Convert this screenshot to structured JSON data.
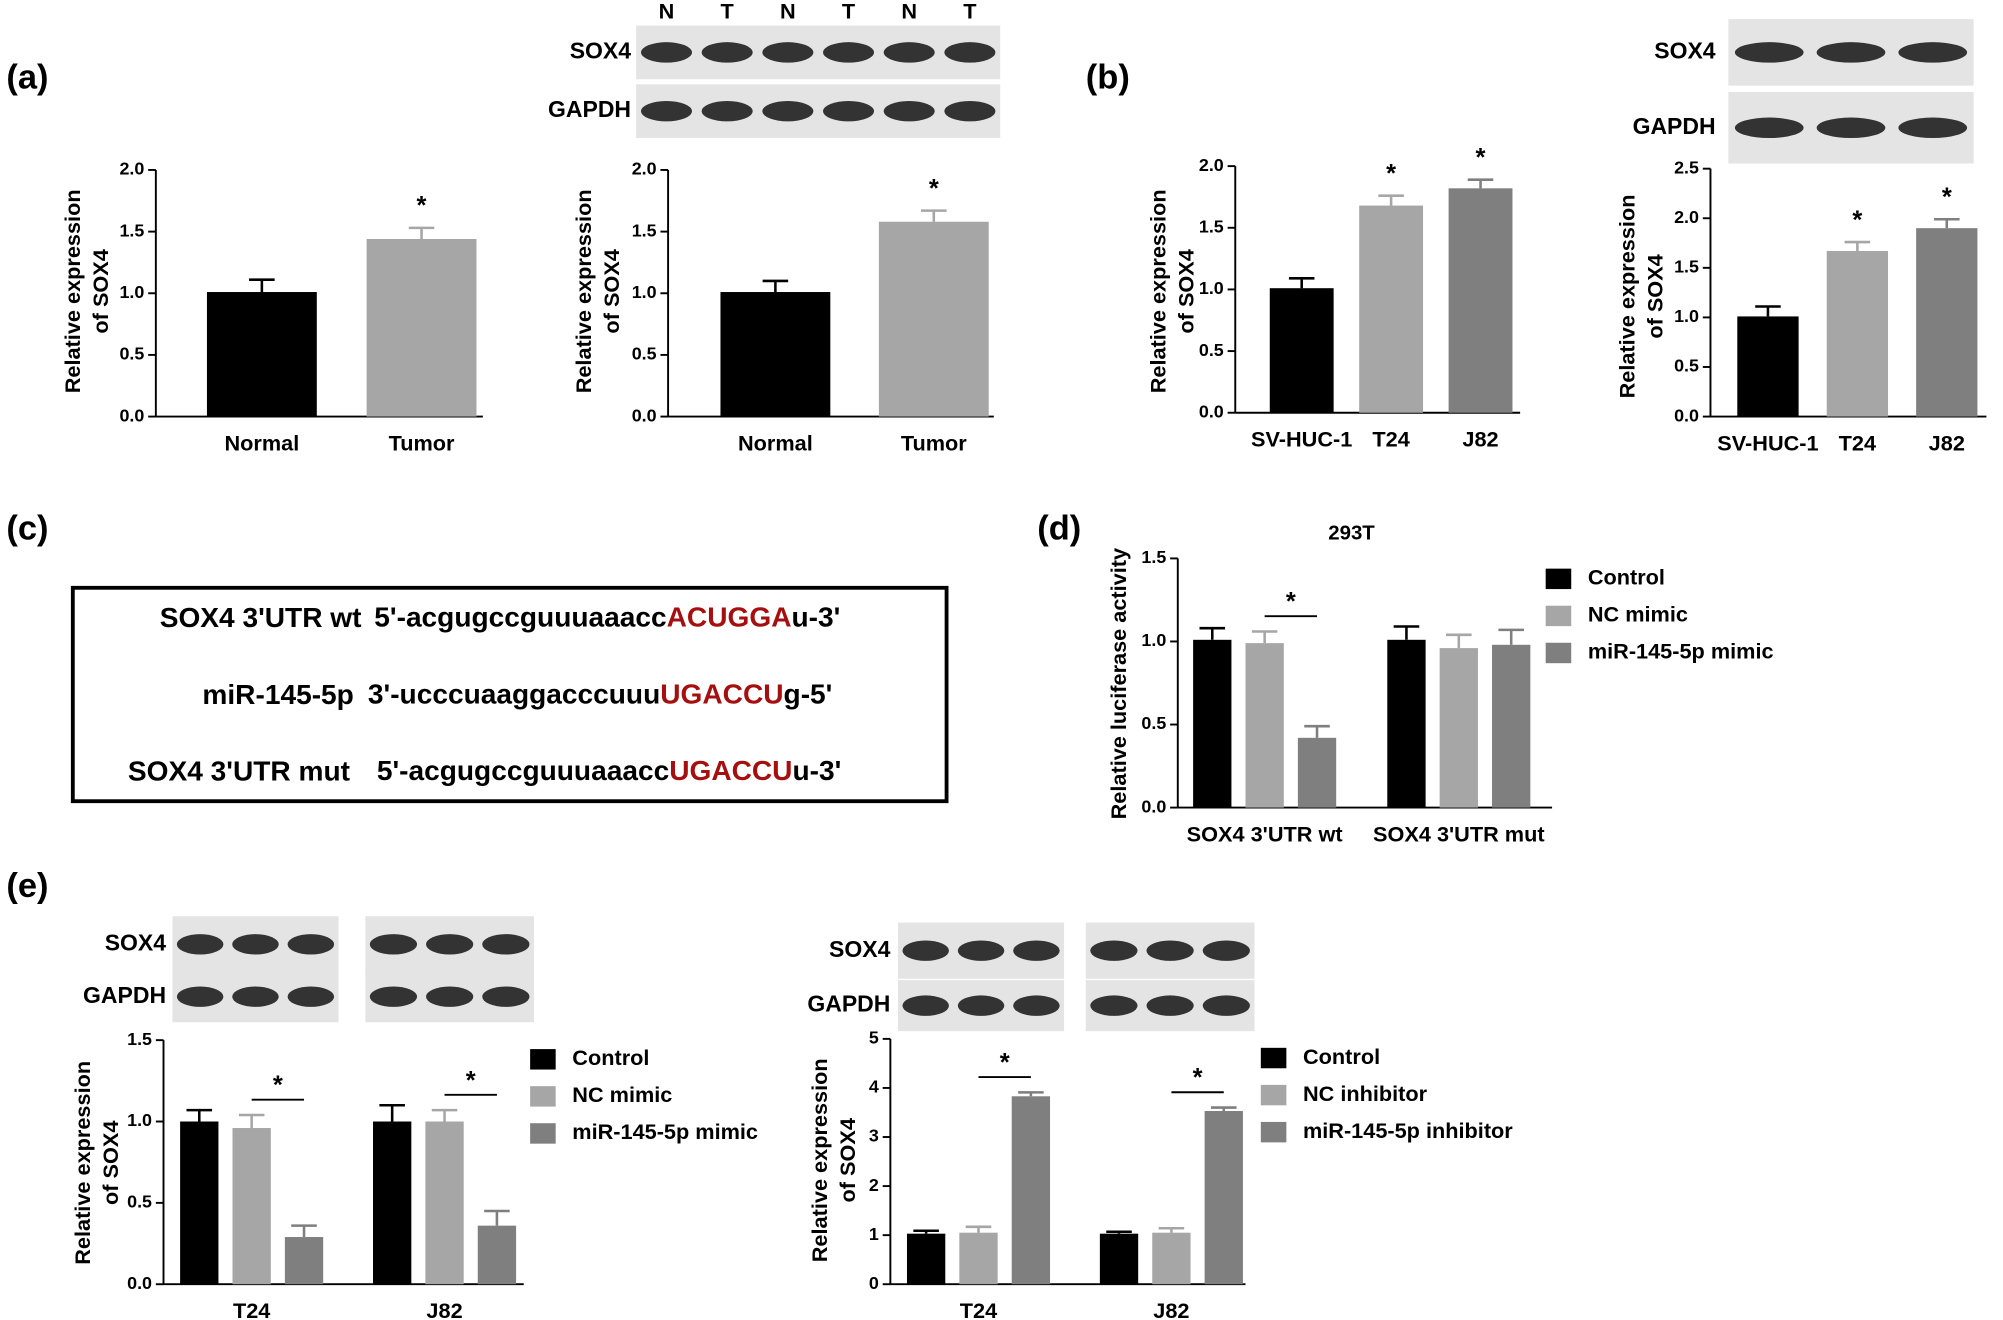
{
  "chart_data": [
    {
      "type": "bar",
      "panel": "(a)",
      "categories": [
        "Normal",
        "Tumor"
      ],
      "values": [
        1.01,
        1.44
      ],
      "errors": [
        0.1,
        0.09
      ],
      "colors": [
        "#000000",
        "#a6a6a6"
      ],
      "ylabel": [
        "Relative expression",
        "of SOX4"
      ],
      "ylim": [
        0,
        2
      ],
      "yticks": [
        {
          "value": 0,
          "label": "0.0"
        },
        0.5,
        {
          "value": 1,
          "label": "1.0"
        },
        1.5,
        {
          "value": 2,
          "label": "2.0"
        }
      ],
      "annotations": [
        {
          "text": "*",
          "category": 1
        }
      ]
    },
    {
      "type": "bar",
      "categories": [
        "Normal",
        "Tumor"
      ],
      "values": [
        1.01,
        1.58
      ],
      "errors": [
        0.09,
        0.09
      ],
      "colors": [
        "#000000",
        "#a6a6a6"
      ],
      "ylabel": [
        "Relative expression",
        "of SOX4"
      ],
      "ylim": [
        0,
        2
      ],
      "yticks": [
        {
          "value": 0,
          "label": "0.0"
        },
        0.5,
        {
          "value": 1,
          "label": "1.0"
        },
        1.5,
        {
          "value": 2,
          "label": "2.0"
        }
      ],
      "annotations": [
        {
          "text": "*",
          "category": 1
        }
      ],
      "blot": {
        "rows": [
          "SOX4",
          "GAPDH"
        ],
        "lanes": [
          "N",
          "T",
          "N",
          "T",
          "N",
          "T"
        ]
      }
    },
    {
      "type": "bar",
      "panel": "(b)",
      "categories": [
        "SV-HUC-1",
        "T24",
        "J82"
      ],
      "values": [
        1.01,
        1.68,
        1.82
      ],
      "errors": [
        0.08,
        0.08,
        0.07
      ],
      "colors": [
        "#000000",
        "#a6a6a6",
        "#7f7f7f"
      ],
      "ylabel": [
        "Relative expression",
        "of SOX4"
      ],
      "ylim": [
        0,
        2
      ],
      "yticks": [
        {
          "value": 0,
          "label": "0.0"
        },
        0.5,
        {
          "value": 1,
          "label": "1.0"
        },
        1.5,
        {
          "value": 2,
          "label": "2.0"
        }
      ],
      "annotations": [
        {
          "text": "*",
          "category": 1
        },
        {
          "text": "*",
          "category": 2
        }
      ]
    },
    {
      "type": "bar",
      "categories": [
        "SV-HUC-1",
        "T24",
        "J82"
      ],
      "values": [
        1.01,
        1.67,
        1.9
      ],
      "errors": [
        0.1,
        0.09,
        0.09
      ],
      "colors": [
        "#000000",
        "#a6a6a6",
        "#7f7f7f"
      ],
      "ylabel": [
        "Relative expression",
        "of SOX4"
      ],
      "ylim": [
        0,
        2.5
      ],
      "yticks": [
        {
          "value": 0,
          "label": "0.0"
        },
        0.5,
        {
          "value": 1,
          "label": "1.0"
        },
        1.5,
        {
          "value": 2,
          "label": "2.0"
        },
        2.5
      ],
      "annotations": [
        {
          "text": "*",
          "category": 1
        },
        {
          "text": "*",
          "category": 2
        }
      ],
      "blot": {
        "rows": [
          "SOX4",
          "GAPDH"
        ]
      }
    },
    {
      "type": "bar",
      "panel": "(d)",
      "title": "293T",
      "categories": [
        "SOX4 3'UTR wt",
        "SOX4 3'UTR mut"
      ],
      "series": [
        {
          "name": "Control",
          "color": "#000000",
          "values": [
            1.01,
            1.01
          ],
          "errors": [
            0.07,
            0.08
          ]
        },
        {
          "name": "NC mimic",
          "color": "#a6a6a6",
          "values": [
            0.99,
            0.96
          ],
          "errors": [
            0.07,
            0.08
          ]
        },
        {
          "name": "miR-145-5p mimic",
          "color": "#7f7f7f",
          "values": [
            0.42,
            0.98
          ],
          "errors": [
            0.07,
            0.09
          ]
        }
      ],
      "ylabel": [
        "Relative luciferase activity"
      ],
      "ylim": [
        0,
        1.5
      ],
      "yticks": [
        {
          "value": 0,
          "label": "0.0"
        },
        0.5,
        {
          "value": 1,
          "label": "1.0"
        },
        1.5
      ],
      "annotations": [
        {
          "text": "*",
          "category": 0,
          "series": [
            1,
            2
          ]
        }
      ]
    },
    {
      "type": "bar",
      "panel": "(e)",
      "categories": [
        "T24",
        "J82"
      ],
      "series": [
        {
          "name": "Control",
          "color": "#000000",
          "values": [
            1.0,
            1.0
          ],
          "errors": [
            0.07,
            0.1
          ]
        },
        {
          "name": "NC mimic",
          "color": "#a6a6a6",
          "values": [
            0.96,
            1.0
          ],
          "errors": [
            0.08,
            0.07
          ]
        },
        {
          "name": "miR-145-5p mimic",
          "color": "#7f7f7f",
          "values": [
            0.29,
            0.36
          ],
          "errors": [
            0.07,
            0.09
          ]
        }
      ],
      "ylabel": [
        "Relative expression",
        "of SOX4"
      ],
      "ylim": [
        0,
        1.5
      ],
      "yticks": [
        {
          "value": 0,
          "label": "0.0"
        },
        0.5,
        {
          "value": 1,
          "label": "1.0"
        },
        1.5
      ],
      "annotations": [
        {
          "text": "*",
          "category": 0,
          "series": [
            1,
            2
          ]
        },
        {
          "text": "*",
          "category": 1,
          "series": [
            1,
            2
          ]
        }
      ],
      "blot": {
        "rows": [
          "SOX4",
          "GAPDH"
        ]
      }
    },
    {
      "type": "bar",
      "categories": [
        "T24",
        "J82"
      ],
      "series": [
        {
          "name": "Control",
          "color": "#000000",
          "values": [
            1.03,
            1.03
          ],
          "errors": [
            0.06,
            0.04
          ]
        },
        {
          "name": "NC inhibitor",
          "color": "#a6a6a6",
          "values": [
            1.05,
            1.05
          ],
          "errors": [
            0.12,
            0.09
          ]
        },
        {
          "name": "miR-145-5p inhibitor",
          "color": "#7f7f7f",
          "values": [
            3.83,
            3.53
          ],
          "errors": [
            0.08,
            0.07
          ]
        }
      ],
      "ylabel": [
        "Relative expression",
        "of SOX4"
      ],
      "ylim": [
        0,
        5
      ],
      "yticks": [
        0,
        1,
        2,
        3,
        4,
        5
      ],
      "annotations": [
        {
          "text": "*",
          "category": 0,
          "series": [
            1,
            2
          ]
        },
        {
          "text": "*",
          "category": 1,
          "series": [
            1,
            2
          ]
        }
      ],
      "blot": {
        "rows": [
          "SOX4",
          "GAPDH"
        ]
      }
    }
  ],
  "sequence_box": {
    "panel": "(c)",
    "rows": [
      {
        "label": "SOX4 3'UTR wt",
        "prefix": "5'-acgugccguuuaaacc",
        "highlight": "ACUGGA",
        "suffix": "u-3'"
      },
      {
        "label": "miR-145-5p",
        "prefix": "3'-ucccuaaggacccuuu",
        "highlight": "UGACCU",
        "suffix": "g-5'"
      },
      {
        "label": "SOX4 3'UTR mut",
        "prefix": "5'-acgugccguuuaaacc",
        "highlight": "UGACCU",
        "suffix": "u-3'"
      }
    ]
  }
}
